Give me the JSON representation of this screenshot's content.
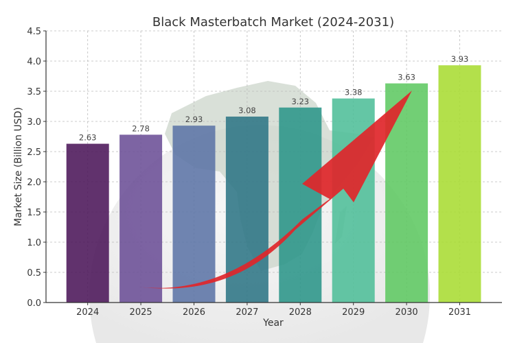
{
  "chart_data": {
    "type": "bar",
    "title": "Black Masterbatch Market (2024-2031)",
    "xlabel": "Year",
    "ylabel": "Market Size (Billion USD)",
    "categories": [
      "2024",
      "2025",
      "2026",
      "2027",
      "2028",
      "2029",
      "2030",
      "2031"
    ],
    "values": [
      2.63,
      2.78,
      2.93,
      3.08,
      3.23,
      3.38,
      3.63,
      3.93
    ],
    "data_labels": [
      "2.63",
      "2.78",
      "2.93",
      "3.08",
      "3.23",
      "3.38",
      "3.63",
      "3.93"
    ],
    "ylim": [
      0,
      4.5
    ],
    "yticks": [
      "0.0",
      "0.5",
      "1.0",
      "1.5",
      "2.0",
      "2.5",
      "3.0",
      "3.5",
      "4.0",
      "4.5"
    ],
    "grid": true,
    "colors": [
      "#4b1659",
      "#6b4f96",
      "#5c74a6",
      "#2e7585",
      "#2b9589",
      "#4fbe98",
      "#5ec862",
      "#a8dc32"
    ],
    "background": "globe with Africa map",
    "annotation": "red upward trend arrow"
  }
}
